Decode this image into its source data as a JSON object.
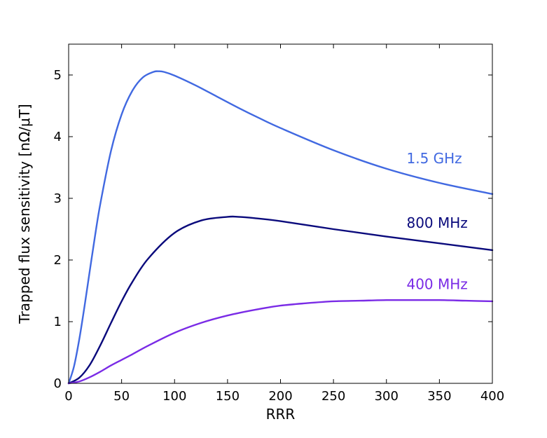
{
  "chart_data": {
    "type": "line",
    "title": "",
    "xlabel": "RRR",
    "ylabel": "Trapped flux sensitivity [nΩ/μT]",
    "xlim": [
      0,
      400
    ],
    "ylim": [
      0,
      5.5
    ],
    "xticks": [
      0,
      50,
      100,
      150,
      200,
      250,
      300,
      350,
      400
    ],
    "yticks": [
      0,
      1,
      2,
      3,
      4,
      5
    ],
    "grid": false,
    "legend": "inline labels near right end of each curve",
    "series": [
      {
        "name": "1.5 GHz",
        "color": "#4169e1",
        "x": [
          0,
          5,
          10,
          15,
          20,
          25,
          30,
          40,
          50,
          60,
          70,
          80,
          85,
          90,
          100,
          120,
          140,
          160,
          180,
          200,
          250,
          300,
          350,
          400
        ],
        "y": [
          0,
          0.27,
          0.71,
          1.25,
          1.83,
          2.4,
          2.92,
          3.77,
          4.36,
          4.74,
          4.96,
          5.05,
          5.06,
          5.05,
          4.99,
          4.83,
          4.65,
          4.47,
          4.3,
          4.14,
          3.78,
          3.48,
          3.25,
          3.07
        ]
      },
      {
        "name": "800 MHz",
        "color": "#0a0a7c",
        "x": [
          0,
          10,
          20,
          30,
          40,
          50,
          60,
          75,
          100,
          125,
          150,
          160,
          175,
          200,
          250,
          300,
          350,
          400
        ],
        "y": [
          0,
          0.09,
          0.3,
          0.62,
          0.98,
          1.33,
          1.64,
          2.02,
          2.44,
          2.64,
          2.7,
          2.7,
          2.68,
          2.63,
          2.5,
          2.38,
          2.27,
          2.16
        ]
      },
      {
        "name": "400 MHz",
        "color": "#7a2be6",
        "x": [
          0,
          10,
          20,
          30,
          40,
          50,
          60,
          75,
          100,
          125,
          150,
          175,
          200,
          225,
          250,
          275,
          300,
          325,
          350,
          375,
          400
        ],
        "y": [
          0,
          0.03,
          0.1,
          0.19,
          0.29,
          0.38,
          0.47,
          0.61,
          0.82,
          0.98,
          1.1,
          1.19,
          1.26,
          1.3,
          1.33,
          1.34,
          1.35,
          1.35,
          1.35,
          1.34,
          1.33
        ]
      }
    ],
    "annotations": [
      {
        "text": "1.5 GHz",
        "series": "1.5 GHz",
        "x": 319,
        "y": 3.57
      },
      {
        "text": "800 MHz",
        "series": "800 MHz",
        "x": 319,
        "y": 2.52
      },
      {
        "text": "400 MHz",
        "series": "400 MHz",
        "x": 319,
        "y": 1.53
      }
    ]
  }
}
